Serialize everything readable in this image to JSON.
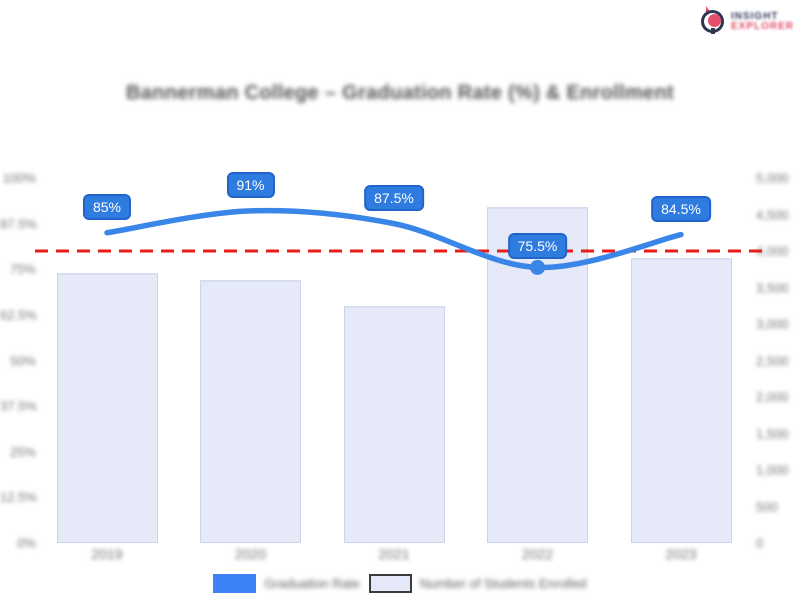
{
  "brand": {
    "line1": "INSIGHT",
    "line2": "EXPLORER",
    "blurred": true,
    "colors": {
      "navy": "#2f3552",
      "pink": "#e4506b"
    }
  },
  "title": {
    "text": "Bannerman College – Graduation Rate (%) & Enrollment",
    "blurred": true
  },
  "legend": {
    "blurred": true,
    "items": [
      {
        "label": "Graduation Rate",
        "type": "line",
        "swatch_color": "#3b82f6"
      },
      {
        "label": "Number of Students Enrolled",
        "type": "bar",
        "swatch_color": "#e4e8f8",
        "swatch_border": "#3c3c3c"
      }
    ]
  },
  "chart_data": {
    "type": "bar",
    "subtype": "combo-bar-line",
    "categories": [
      "2019",
      "2020",
      "2021",
      "2022",
      "2023"
    ],
    "categories_blurred": true,
    "series": [
      {
        "name": "Graduation Rate",
        "type": "line",
        "axis": "left",
        "unit": "%",
        "color": "#3a86e8",
        "values": [
          85,
          91,
          87.5,
          75.5,
          84.5
        ],
        "point_labels": [
          "85%",
          "91%",
          "87.5%",
          "75.5%",
          "84.5%"
        ],
        "marker_shown_on": "75.5%"
      },
      {
        "name": "Number of Students Enrolled",
        "type": "bar",
        "axis": "right",
        "color": "#e5e9f8",
        "values": [
          3700,
          3600,
          3250,
          4600,
          3900
        ],
        "values_estimated_from_pixels": true
      }
    ],
    "threshold_line": {
      "axis": "left",
      "value": 80,
      "color": "#e81c18",
      "style": "dashed"
    },
    "left_axis": {
      "min": 0,
      "max": 100,
      "blurred": true,
      "ticks": [
        "100%",
        "87.5%",
        "75%",
        "62.5%",
        "50%",
        "37.5%",
        "25%",
        "12.5%",
        "0%"
      ]
    },
    "right_axis": {
      "min": 0,
      "max": 5000,
      "blurred": true,
      "ticks": [
        "5,000",
        "4,500",
        "4,000",
        "3,500",
        "3,000",
        "2,500",
        "2,000",
        "1,500",
        "1,000",
        "500",
        "0"
      ]
    },
    "grid": false,
    "legend_position": "bottom"
  }
}
